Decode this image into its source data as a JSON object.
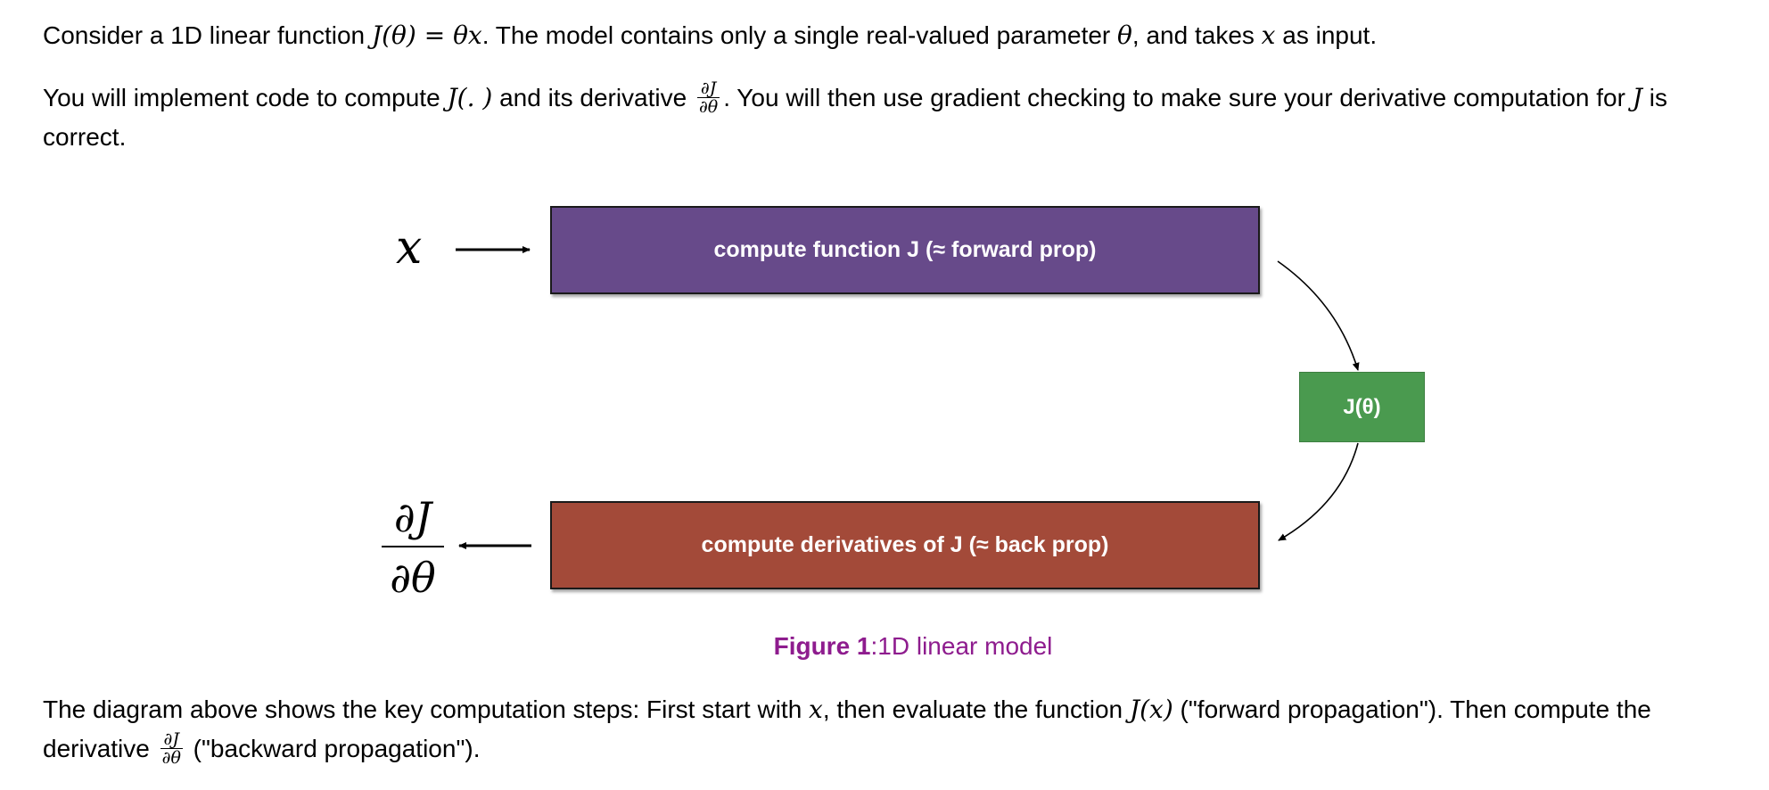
{
  "intro": {
    "p1_text_a": "Consider a 1D linear function ",
    "p1_math_fn": "J(θ) = θx",
    "p1_text_b": ". The model contains only a single real-valued parameter ",
    "p1_math_theta": "θ",
    "p1_text_c": ", and takes ",
    "p1_math_x": "x",
    "p1_text_d": " as input.",
    "p2_text_a": "You will implement code to compute ",
    "p2_math_j": "J(. )",
    "p2_text_b": " and its derivative ",
    "p2_frac_num": "∂J",
    "p2_frac_den": "∂θ",
    "p2_text_c": ". You will then use gradient checking to make sure your derivative computation for ",
    "p2_math_j2": "J",
    "p2_text_d": " is correct."
  },
  "diagram": {
    "input_symbol": "x",
    "forward_box_label": "compute function J (≈ forward prop)",
    "output_box_label": "J(θ)",
    "back_box_label": "compute derivatives of J (≈ back prop)",
    "deriv_num": "∂J",
    "deriv_den": "∂θ",
    "colors": {
      "forward": "#674a8a",
      "output": "#4a9a4f",
      "back": "#a34a39"
    }
  },
  "figure": {
    "caption_label": "Figure 1",
    "caption_text": ":1D linear model",
    "caption_color": "#8e1c8e"
  },
  "outro": {
    "text_a": "The diagram above shows the key computation steps: First start with ",
    "math_x": "x",
    "text_b": ", then evaluate the function ",
    "math_jx": "J(x)",
    "text_c": " (\"forward propagation\"). Then compute the derivative ",
    "frac_num": "∂J",
    "frac_den": "∂θ",
    "text_d": " (\"backward propagation\")."
  }
}
